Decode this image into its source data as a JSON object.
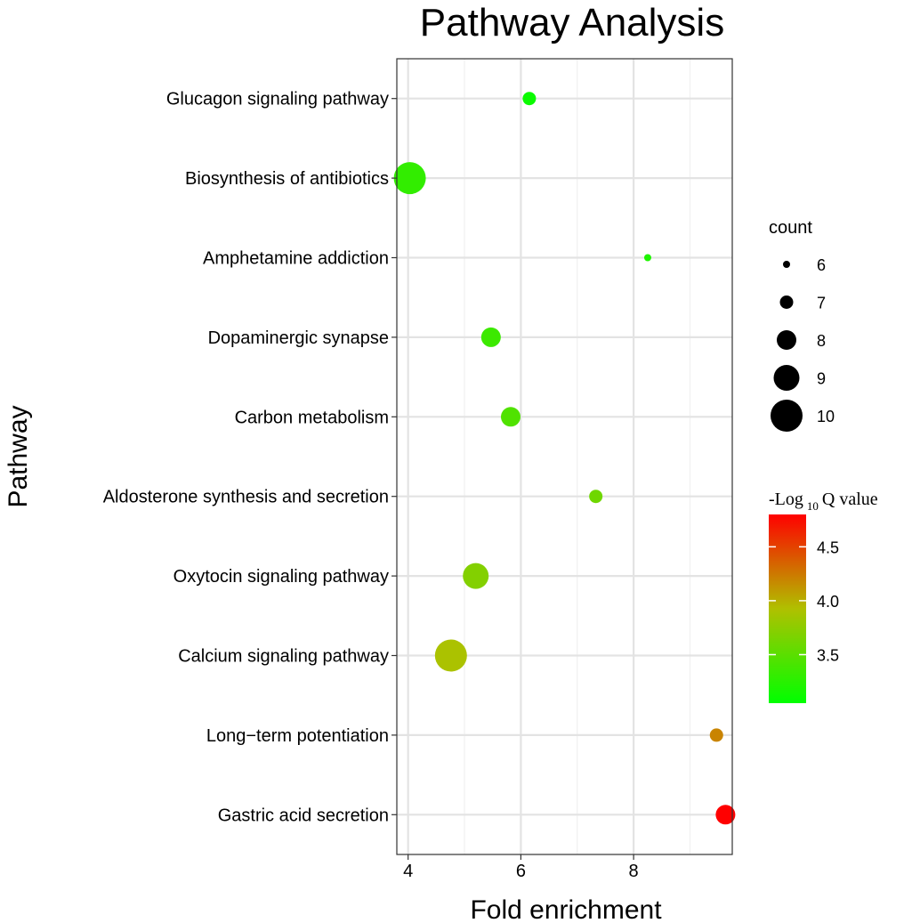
{
  "chart_data": {
    "type": "scatter",
    "title": "Pathway Analysis",
    "xlabel": "Fold enrichment",
    "ylabel": "Pathway",
    "xlim": [
      3.8,
      9.75
    ],
    "x_ticks": [
      4,
      6,
      8
    ],
    "x_tick_labels": [
      "4",
      "6",
      "8"
    ],
    "grid": true,
    "categories": [
      "Glucagon signaling pathway",
      "Biosynthesis of antibiotics",
      "Amphetamine addiction",
      "Dopaminergic synapse",
      "Carbon metabolism",
      "Aldosterone synthesis and secretion",
      "Oxytocin signaling pathway",
      "Calcium signaling pathway",
      "Long−term potentiation",
      "Gastric acid secretion"
    ],
    "points": [
      {
        "pathway": "Glucagon signaling pathway",
        "fold_enrichment": 6.15,
        "count": 7,
        "neg_log10_q": 3.1
      },
      {
        "pathway": "Biosynthesis of antibiotics",
        "fold_enrichment": 4.03,
        "count": 10,
        "neg_log10_q": 3.3
      },
      {
        "pathway": "Amphetamine addiction",
        "fold_enrichment": 8.25,
        "count": 6,
        "neg_log10_q": 3.2
      },
      {
        "pathway": "Dopaminergic synapse",
        "fold_enrichment": 5.47,
        "count": 8,
        "neg_log10_q": 3.35
      },
      {
        "pathway": "Carbon metabolism",
        "fold_enrichment": 5.82,
        "count": 8,
        "neg_log10_q": 3.45
      },
      {
        "pathway": "Aldosterone synthesis and secretion",
        "fold_enrichment": 7.33,
        "count": 7,
        "neg_log10_q": 3.6
      },
      {
        "pathway": "Oxytocin signaling pathway",
        "fold_enrichment": 5.2,
        "count": 9,
        "neg_log10_q": 3.7
      },
      {
        "pathway": "Calcium signaling pathway",
        "fold_enrichment": 4.76,
        "count": 10,
        "neg_log10_q": 3.9
      },
      {
        "pathway": "Long−term potentiation",
        "fold_enrichment": 9.47,
        "count": 7,
        "neg_log10_q": 4.2
      },
      {
        "pathway": "Gastric acid secretion",
        "fold_enrichment": 9.63,
        "count": 8,
        "neg_log10_q": 4.8
      }
    ],
    "size_legend": {
      "title": "count",
      "values": [
        6,
        7,
        8,
        9,
        10
      ],
      "labels": [
        "6",
        "7",
        "8",
        "9",
        "10"
      ]
    },
    "color_legend": {
      "title_main": "-Log",
      "title_sub": "10",
      "title_end": "Q value",
      "range": [
        3.05,
        4.8
      ],
      "ticks": [
        3.5,
        4.0,
        4.5
      ],
      "tick_labels": [
        "3.5",
        "4.0",
        "4.5"
      ],
      "colors": [
        "#00ff00",
        "#ff0000"
      ]
    },
    "legend_position": "right"
  }
}
